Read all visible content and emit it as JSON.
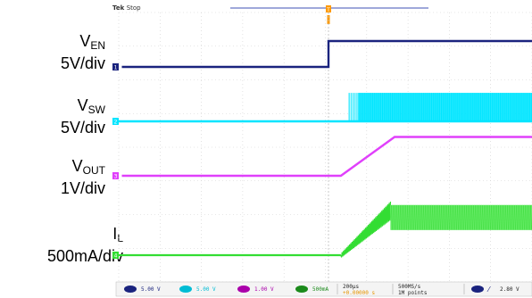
{
  "scope": {
    "brand": "Tek",
    "state": "Stop",
    "trigger_marker": "T"
  },
  "labels": [
    {
      "id": "ven",
      "main": "V",
      "sub": "EN",
      "scale": "5V/div"
    },
    {
      "id": "vsw",
      "main": "V",
      "sub": "SW",
      "scale": "5V/div"
    },
    {
      "id": "vout",
      "main": "V",
      "sub": "OUT",
      "scale": "1V/div"
    },
    {
      "id": "il",
      "main": "I",
      "sub": "L",
      "scale": "500mA/div"
    }
  ],
  "status_bar": {
    "ch1": "5.00 V",
    "ch2": "5.00 V",
    "ch3": "1.00 V",
    "ch4": "500mA",
    "timebase": "200µs",
    "trigger_pos": "+0.00000 s",
    "sample_rate": "500MS/s",
    "record_length": "1M points",
    "trigger_level": "2.80 V"
  },
  "chart_data": {
    "type": "line",
    "time_per_div": "200µs",
    "divisions": 10,
    "trigger_division": 0,
    "colors": {
      "EN": "#1a237e",
      "SW": "#00e5ff",
      "OUT": "#e040fb",
      "L": "#33dd33",
      "trigger": "#ff9900"
    },
    "series": [
      {
        "name": "VEN",
        "channel": "1",
        "scale": "5V/div",
        "points": [
          [
            -5,
            0
          ],
          [
            0,
            0
          ],
          [
            0,
            1
          ],
          [
            5,
            1
          ]
        ]
      },
      {
        "name": "VSW",
        "channel": "2",
        "scale": "5V/div",
        "points": [
          [
            -5,
            0
          ],
          [
            0.5,
            0
          ],
          [
            0.5,
            1.1
          ],
          [
            5,
            1.1
          ]
        ],
        "switching_from_div": 0.5
      },
      {
        "name": "VOUT",
        "channel": "3",
        "scale": "1V/div",
        "points": [
          [
            -5,
            0
          ],
          [
            0.3,
            0
          ],
          [
            1.6,
            1.5
          ],
          [
            5,
            1.5
          ]
        ]
      },
      {
        "name": "IL",
        "channel": "4",
        "scale": "500mA/div",
        "points": [
          [
            -5,
            0
          ],
          [
            0.3,
            0
          ],
          [
            1.5,
            1.8
          ],
          [
            5,
            1.8
          ]
        ],
        "ripple": true
      }
    ]
  }
}
